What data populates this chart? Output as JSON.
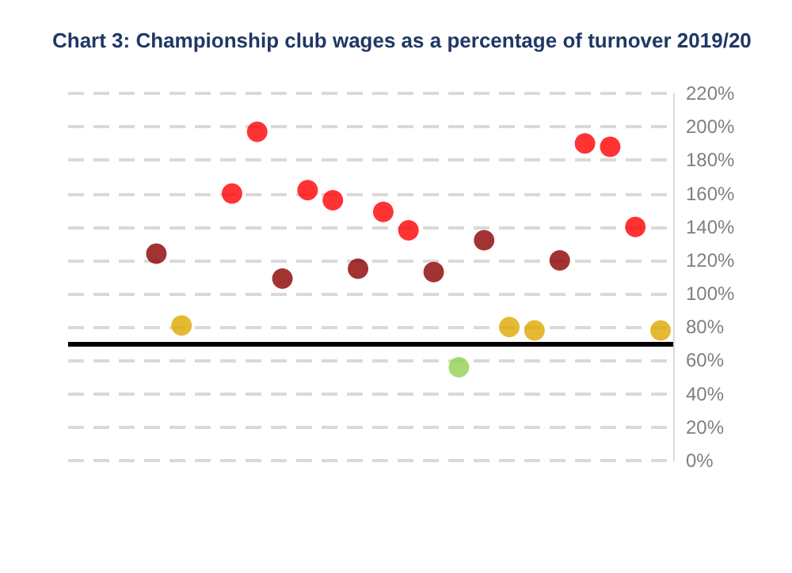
{
  "chart_data": {
    "type": "scatter",
    "title": "Chart 3: Championship club wages as a percentage of turnover 2019/20",
    "categories": [
      null,
      null,
      null,
      null,
      null,
      null,
      null,
      null,
      null,
      null,
      null,
      null,
      null,
      null,
      null,
      null,
      null,
      null,
      null,
      null,
      null,
      null,
      null,
      null
    ],
    "values": [
      null,
      null,
      null,
      124,
      81,
      null,
      160,
      197,
      109,
      162,
      156,
      115,
      149,
      138,
      113,
      56,
      132,
      80,
      78,
      120,
      190,
      188,
      140,
      78
    ],
    "colors": [
      null,
      null,
      null,
      "#8b0000",
      "#e0a800",
      null,
      "#ff0000",
      "#ff0000",
      "#8b0000",
      "#ff0000",
      "#ff0000",
      "#8b0000",
      "#ff0000",
      "#ff0000",
      "#8b0000",
      "#92d050",
      "#8b0000",
      "#e0a800",
      "#e0a800",
      "#8b0000",
      "#ff0000",
      "#ff0000",
      "#ff0000",
      "#e0a800"
    ],
    "ylim": [
      0,
      220
    ],
    "yticks": [
      {
        "value": 0,
        "label": "0%"
      },
      {
        "value": 20,
        "label": "20%"
      },
      {
        "value": 40,
        "label": "40%"
      },
      {
        "value": 60,
        "label": "60%"
      },
      {
        "value": 80,
        "label": "80%"
      },
      {
        "value": 100,
        "label": "100%"
      },
      {
        "value": 120,
        "label": "120%"
      },
      {
        "value": 140,
        "label": "140%"
      },
      {
        "value": 160,
        "label": "160%"
      },
      {
        "value": 180,
        "label": "180%"
      },
      {
        "value": 200,
        "label": "200%"
      },
      {
        "value": 220,
        "label": "220%"
      }
    ],
    "ref_lines": [
      {
        "axis": "y",
        "value": 70,
        "color": "#000000",
        "line_style": "solid"
      }
    ],
    "grid": "y",
    "marker": "circle",
    "tick_labels": "y"
  }
}
